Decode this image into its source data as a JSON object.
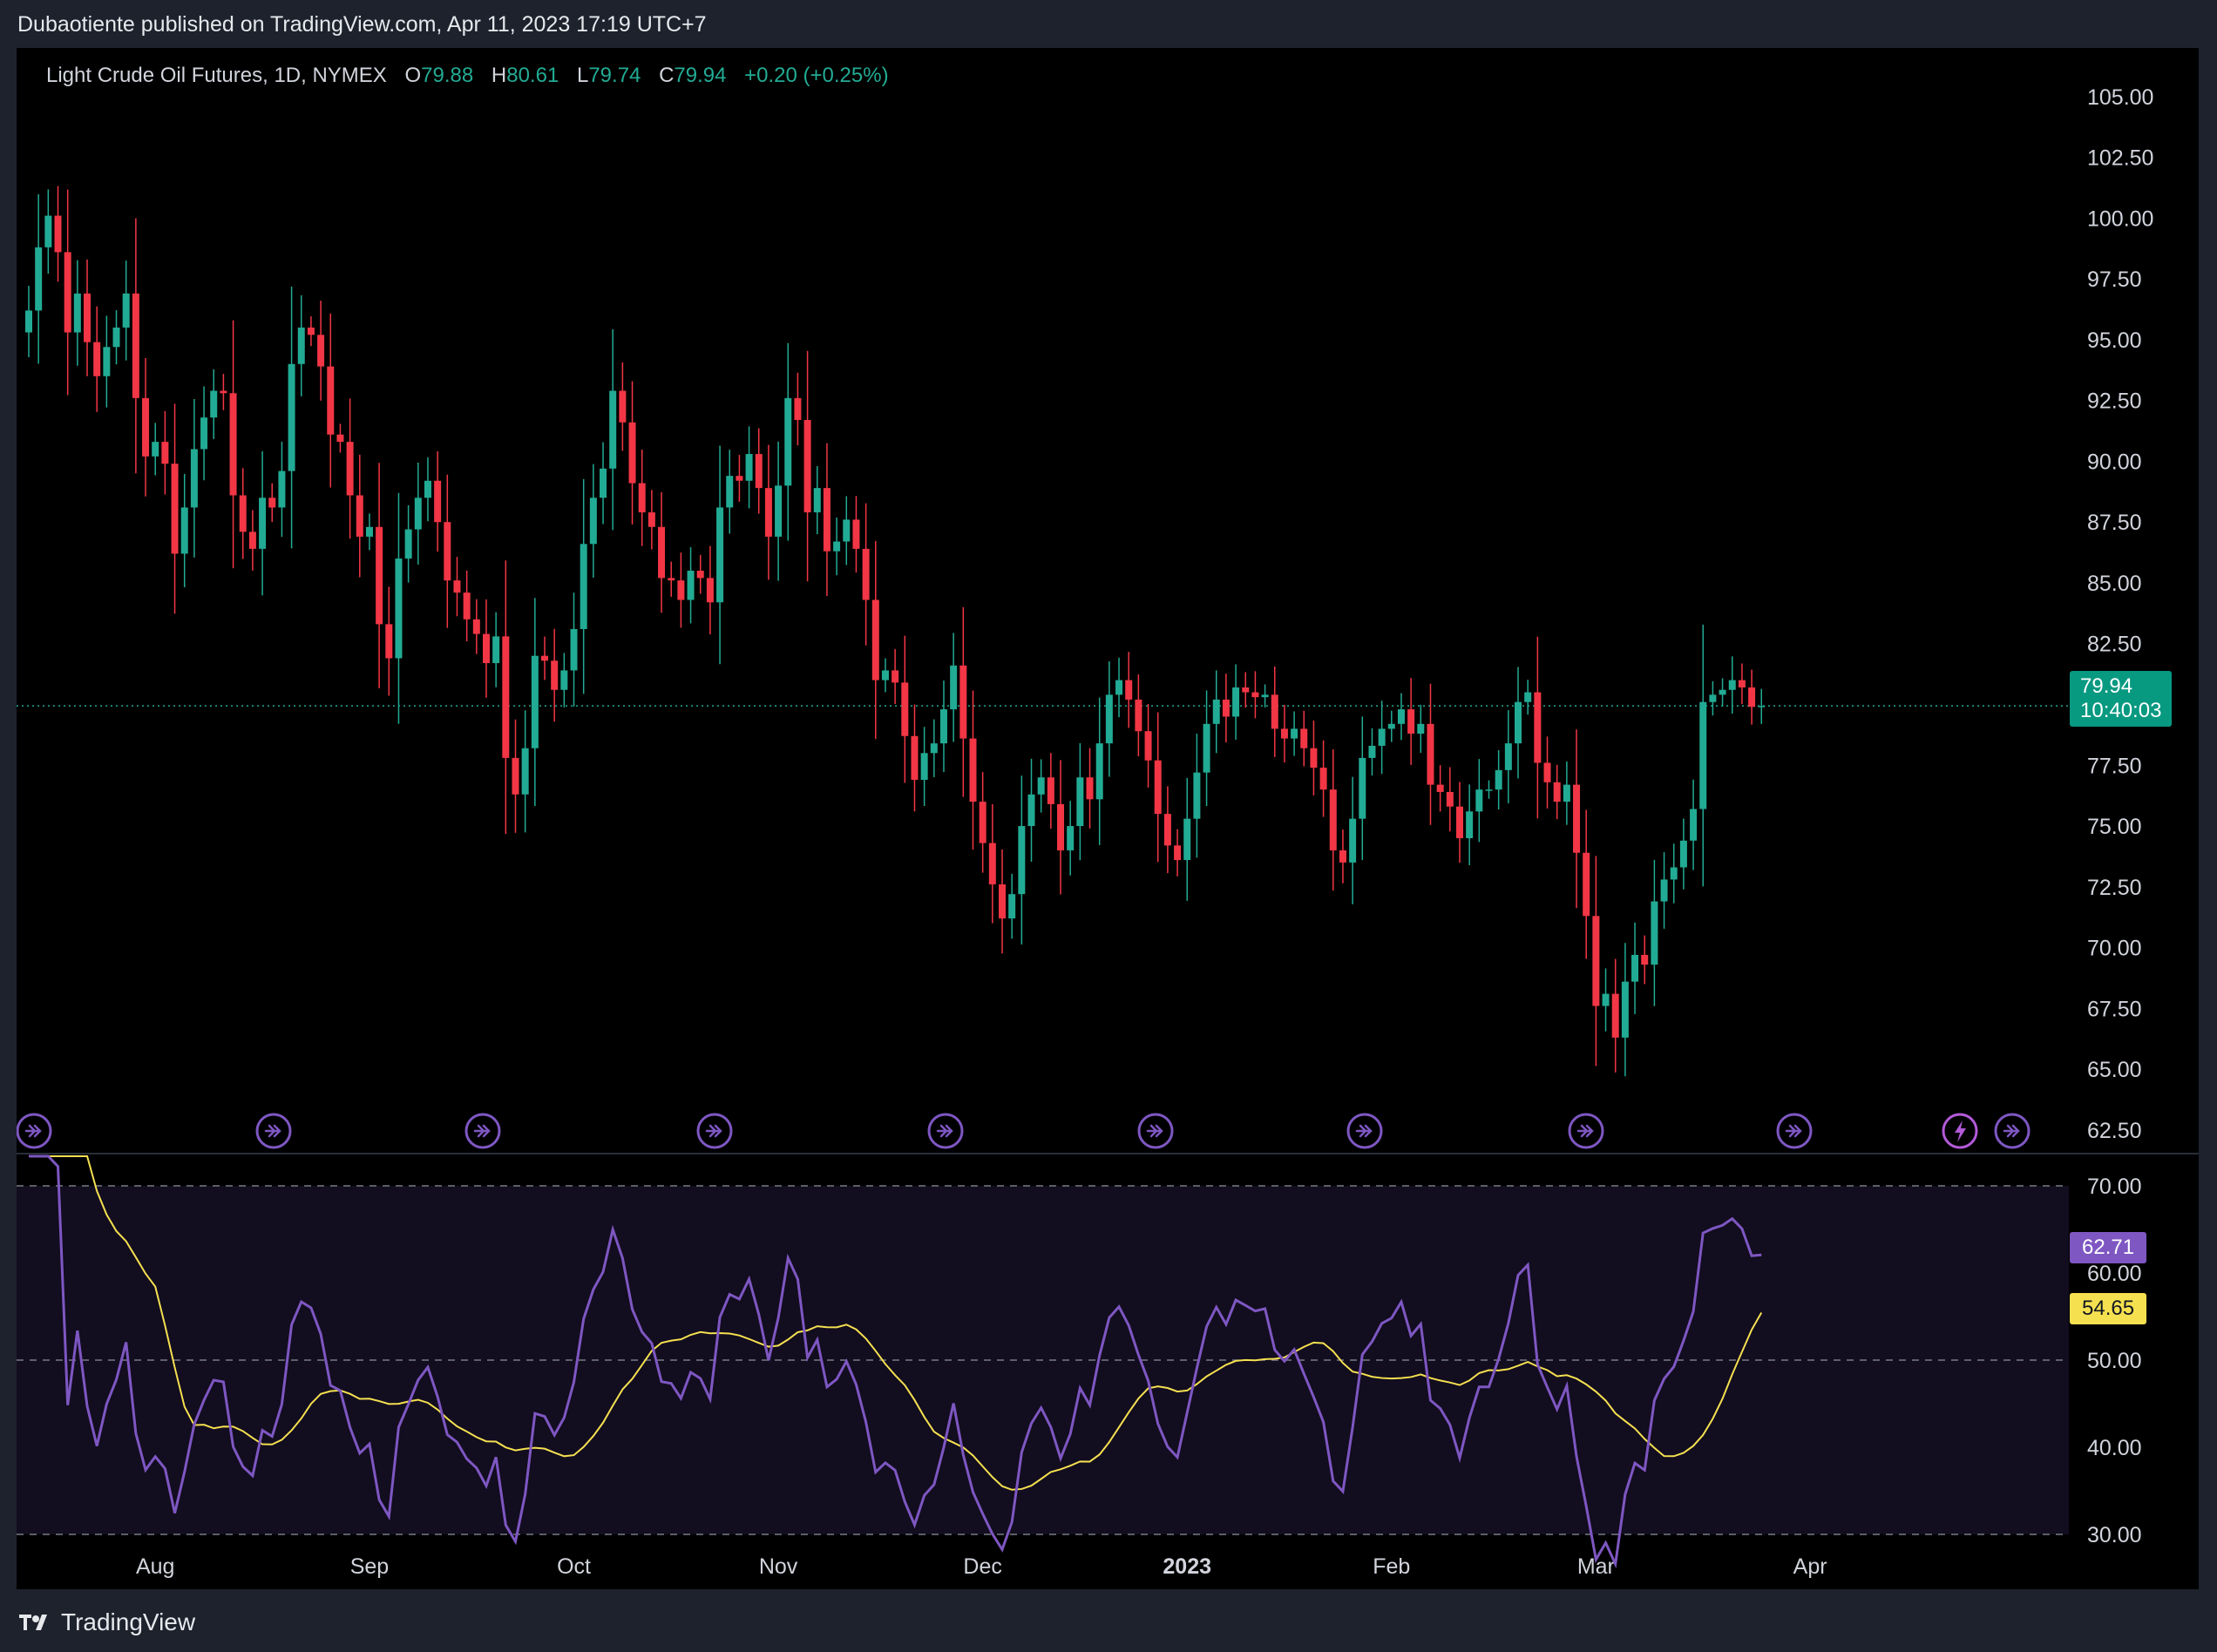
{
  "header": {
    "publisher_line": "Dubaotiente published on TradingView.com, Apr 11, 2023 17:19 UTC+7"
  },
  "legend": {
    "symbol": "Light Crude Oil Futures, 1D, NYMEX",
    "o_label": "O",
    "o_value": "79.88",
    "h_label": "H",
    "h_value": "80.61",
    "l_label": "L",
    "l_value": "79.74",
    "c_label": "C",
    "c_value": "79.94",
    "change": "+0.20 (+0.25%)"
  },
  "price_tag": {
    "price": "79.94",
    "countdown": "10:40:03"
  },
  "rsi_tags": {
    "rsi": "62.71",
    "ma": "54.65"
  },
  "footer": {
    "brand": "TradingView"
  },
  "colors": {
    "up": "#22ab94",
    "down": "#f23645",
    "rsi": "#7e57c2",
    "rsi_ma": "#f5e050",
    "bg": "#000000",
    "frame": "#1e222d"
  },
  "chart_data": [
    {
      "type": "candlestick",
      "price_axis": [
        105.0,
        102.5,
        100.0,
        97.5,
        95.0,
        92.5,
        90.0,
        87.5,
        85.0,
        82.5,
        77.5,
        75.0,
        72.5,
        70.0,
        67.5,
        65.0,
        62.5
      ],
      "ylim": [
        61.6,
        107.0
      ],
      "x_ticks": [
        "Aug",
        "Sep",
        "Oct",
        "Nov",
        "Dec",
        "2023",
        "Feb",
        "Mar",
        "Apr"
      ],
      "x_tick_index": [
        13,
        35,
        56,
        77,
        98,
        119,
        140,
        161,
        183
      ],
      "last_price_line": 79.94,
      "closes": [
        96.2,
        98.8,
        100.1,
        98.6,
        95.3,
        96.9,
        94.9,
        93.5,
        94.7,
        95.5,
        96.9,
        92.6,
        90.2,
        90.8,
        89.9,
        86.2,
        88.1,
        90.5,
        91.8,
        92.9,
        92.8,
        88.6,
        87.1,
        86.4,
        88.5,
        88.1,
        89.6,
        94.0,
        95.5,
        95.2,
        93.9,
        91.1,
        90.8,
        88.6,
        86.9,
        87.3,
        83.3,
        81.9,
        86.0,
        87.2,
        88.5,
        89.2,
        87.5,
        85.1,
        84.6,
        83.5,
        82.9,
        81.7,
        82.8,
        77.8,
        76.3,
        78.2,
        82.0,
        81.8,
        80.6,
        81.4,
        83.1,
        86.6,
        88.5,
        89.7,
        92.9,
        91.6,
        89.1,
        87.9,
        87.3,
        85.2,
        85.1,
        84.3,
        85.5,
        85.2,
        84.2,
        88.1,
        89.4,
        89.2,
        90.3,
        88.9,
        86.9,
        89.0,
        92.6,
        91.7,
        87.9,
        88.9,
        86.3,
        86.7,
        87.6,
        86.4,
        84.3,
        81.0,
        81.4,
        80.9,
        78.7,
        76.9,
        78.0,
        78.4,
        79.8,
        81.6,
        78.6,
        76.0,
        74.3,
        72.6,
        71.2,
        72.2,
        75.0,
        76.3,
        77.0,
        75.9,
        74.0,
        75.0,
        77.0,
        76.1,
        78.4,
        80.4,
        81.0,
        80.2,
        78.9,
        77.7,
        75.5,
        74.2,
        73.6,
        75.3,
        77.2,
        79.2,
        80.2,
        79.5,
        80.7,
        80.5,
        80.3,
        80.4,
        79.0,
        78.6,
        79.0,
        78.2,
        77.4,
        76.5,
        74.0,
        73.5,
        75.3,
        77.8,
        78.3,
        79.0,
        79.2,
        79.8,
        78.8,
        79.2,
        76.7,
        76.4,
        75.8,
        74.5,
        75.6,
        76.5,
        76.5,
        77.3,
        78.4,
        80.1,
        80.5,
        77.6,
        76.8,
        76.0,
        76.7,
        73.9,
        71.3,
        67.6,
        68.1,
        66.3,
        68.6,
        69.7,
        69.3,
        71.9,
        72.8,
        73.3,
        74.4,
        75.7,
        80.1,
        80.4,
        80.6,
        81.0,
        80.7,
        79.9,
        79.94
      ],
      "rsi": {
        "levels": [
          70,
          50,
          30
        ],
        "axis": [
          70.0,
          60.0,
          50.0,
          40.0,
          30.0
        ],
        "ylim": [
          26.6,
          73.4
        ],
        "last_rsi": 62.71,
        "last_ma": 54.65
      }
    }
  ]
}
